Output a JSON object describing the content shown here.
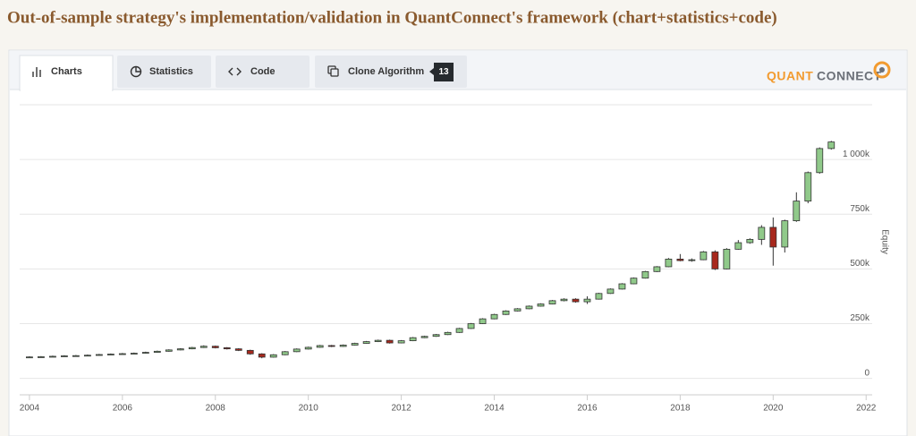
{
  "header": {
    "title": "Out-of-sample strategy's implementation/validation in QuantConnect's framework (chart+statistics+code)"
  },
  "tabs": [
    "Charts",
    "Statistics",
    "Code",
    "Clone Algorithm"
  ],
  "clone_count": 13,
  "logo": [
    "QUANT",
    "CONNECT"
  ],
  "chart_data": {
    "type": "candlestick",
    "y_label": "Equity",
    "up_color": "#90c98a",
    "down_color": "#a8281d",
    "grid": true,
    "xlim": [
      2003.79,
      2022.13
    ],
    "ylim": [
      -75000,
      1250000
    ],
    "xticks": [
      2004,
      2006,
      2008,
      2010,
      2012,
      2014,
      2016,
      2018,
      2020,
      2022
    ],
    "yticks": [
      0,
      {
        "value": 250000,
        "label": "250k"
      },
      {
        "value": 500000,
        "label": "500k"
      },
      {
        "value": 750000,
        "label": "750k"
      },
      {
        "value": 1000000,
        "label": "1 000k"
      }
    ],
    "x": [
      2004,
      2004.25,
      2004.5,
      2004.75,
      2005,
      2005.25,
      2005.5,
      2005.75,
      2006,
      2006.25,
      2006.5,
      2006.75,
      2007,
      2007.25,
      2007.5,
      2007.75,
      2008,
      2008.25,
      2008.5,
      2008.75,
      2009,
      2009.25,
      2009.5,
      2009.75,
      2010,
      2010.25,
      2010.5,
      2010.75,
      2011,
      2011.25,
      2011.5,
      2011.75,
      2012,
      2012.25,
      2012.5,
      2012.75,
      2013,
      2013.25,
      2013.5,
      2013.75,
      2014,
      2014.25,
      2014.5,
      2014.75,
      2015,
      2015.25,
      2015.5,
      2015.75,
      2016,
      2016.25,
      2016.5,
      2016.75,
      2017,
      2017.25,
      2017.5,
      2017.75,
      2018,
      2018.25,
      2018.5,
      2018.75,
      2019,
      2019.25,
      2019.5,
      2019.75,
      2020,
      2020.25,
      2020.5,
      2020.75,
      2021,
      2021.25
    ],
    "open": [
      97000,
      98000,
      99000,
      101000,
      103000,
      104000,
      106000,
      109000,
      111000,
      113000,
      115000,
      119000,
      124000,
      130000,
      135000,
      141000,
      147000,
      140000,
      135000,
      128000,
      112000,
      97000,
      108000,
      122000,
      134000,
      142000,
      150000,
      146000,
      152000,
      160000,
      168000,
      174000,
      162000,
      172000,
      186000,
      192000,
      200000,
      210000,
      228000,
      250000,
      272000,
      292000,
      308000,
      318000,
      330000,
      340000,
      355000,
      362000,
      350000,
      362000,
      388000,
      408000,
      432000,
      458000,
      488000,
      510000,
      545000,
      538000,
      542000,
      578000,
      500000,
      590000,
      620000,
      635000,
      690000,
      600000,
      720000,
      810000,
      940000,
      1050000
    ],
    "high": [
      101000,
      102000,
      104000,
      106000,
      107000,
      109000,
      112000,
      114000,
      116000,
      118000,
      122000,
      127000,
      133000,
      138000,
      144000,
      151000,
      150000,
      143000,
      138000,
      131000,
      115000,
      111000,
      125000,
      137000,
      145000,
      153000,
      153000,
      155000,
      163000,
      171000,
      177000,
      177000,
      175000,
      189000,
      195000,
      203000,
      213000,
      231000,
      253000,
      275000,
      295000,
      311000,
      321000,
      333000,
      343000,
      358000,
      366000,
      366000,
      375000,
      391000,
      411000,
      435000,
      461000,
      491000,
      513000,
      550000,
      568000,
      548000,
      582000,
      585000,
      595000,
      632000,
      640000,
      700000,
      735000,
      725000,
      850000,
      945000,
      1055000,
      1085000
    ],
    "low": [
      95000,
      96000,
      97000,
      99000,
      101000,
      102000,
      104000,
      107000,
      109000,
      111000,
      113000,
      117000,
      122000,
      128000,
      133000,
      139000,
      137000,
      132000,
      125000,
      108000,
      92000,
      95000,
      106000,
      120000,
      132000,
      140000,
      143000,
      144000,
      150000,
      158000,
      166000,
      159000,
      160000,
      170000,
      184000,
      190000,
      198000,
      208000,
      226000,
      248000,
      270000,
      290000,
      306000,
      316000,
      328000,
      338000,
      352000,
      346000,
      340000,
      360000,
      386000,
      406000,
      430000,
      456000,
      486000,
      508000,
      535000,
      533000,
      540000,
      495000,
      498000,
      588000,
      615000,
      610000,
      515000,
      575000,
      715000,
      800000,
      935000,
      1045000
    ],
    "close": [
      98000,
      99000,
      101000,
      103000,
      104000,
      106000,
      109000,
      111000,
      113000,
      115000,
      119000,
      124000,
      130000,
      135000,
      141000,
      147000,
      140000,
      135000,
      128000,
      112000,
      97000,
      108000,
      122000,
      134000,
      142000,
      150000,
      146000,
      152000,
      160000,
      168000,
      174000,
      162000,
      172000,
      186000,
      192000,
      200000,
      210000,
      228000,
      250000,
      272000,
      292000,
      308000,
      318000,
      330000,
      340000,
      355000,
      362000,
      350000,
      362000,
      388000,
      408000,
      432000,
      458000,
      488000,
      510000,
      545000,
      538000,
      542000,
      578000,
      500000,
      590000,
      620000,
      635000,
      690000,
      600000,
      720000,
      810000,
      940000,
      1050000,
      1080000
    ]
  }
}
